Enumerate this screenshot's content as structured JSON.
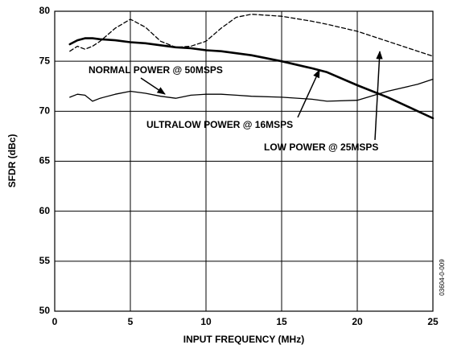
{
  "chart_data": {
    "type": "line",
    "xlabel": "INPUT FREQUENCY (MHz)",
    "ylabel": "SFDR (dBc)",
    "side_note": "03604-0-009",
    "xlim": [
      0,
      25
    ],
    "xticks": [
      0,
      5,
      10,
      15,
      20,
      25
    ],
    "ylim": [
      50,
      80
    ],
    "yticks": [
      50,
      55,
      60,
      65,
      70,
      75,
      80
    ],
    "grid": true,
    "x": [
      1,
      1.5,
      2,
      2.5,
      3,
      4,
      5,
      6,
      7,
      8,
      9,
      10,
      11,
      12,
      13,
      15,
      17,
      18,
      20,
      22,
      24,
      25
    ],
    "series": [
      {
        "name": "NORMAL POWER @ 50MSPS",
        "color": "#000000",
        "style": "thin",
        "values": [
          71.4,
          71.7,
          71.6,
          71,
          71.3,
          71.7,
          72,
          71.8,
          71.5,
          71.3,
          71.6,
          71.7,
          71.7,
          71.6,
          71.5,
          71.4,
          71.2,
          71,
          71.1,
          72,
          72.7,
          73.2
        ]
      },
      {
        "name": "ULTRALOW POWER @ 16MSPS",
        "color": "#000000",
        "style": "thick",
        "values": [
          76.7,
          77.1,
          77.3,
          77.3,
          77.2,
          77.1,
          76.9,
          76.8,
          76.6,
          76.4,
          76.3,
          76.1,
          76,
          75.8,
          75.6,
          75,
          74.3,
          73.9,
          72.6,
          71.4,
          70,
          69.3
        ]
      },
      {
        "name": "LOW POWER @ 25MSPS",
        "color": "#000000",
        "style": "dashed",
        "values": [
          76,
          76.5,
          76.2,
          76.5,
          77,
          78.3,
          79.2,
          78.4,
          77,
          76.4,
          76.5,
          77,
          78.3,
          79.4,
          79.7,
          79.5,
          79,
          78.7,
          78,
          77,
          76,
          75.5
        ]
      }
    ]
  }
}
